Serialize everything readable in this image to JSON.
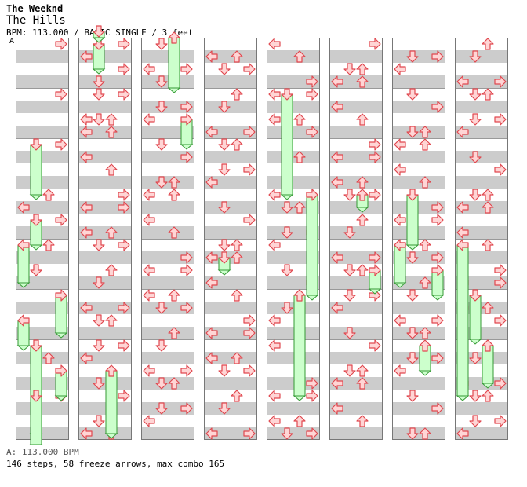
{
  "song": {
    "artist": "The Weeknd",
    "title": "The Hills",
    "info": "BPM: 113.000 / BASIC SINGLE / 3 feet",
    "bpm_marker": "A"
  },
  "footer": {
    "bpm_legend": "A: 113.000 BPM",
    "stats": "146 steps, 58 freeze arrows, max combo 165"
  },
  "colors": {
    "row_dark": "#cccccc",
    "row_light": "#ffffff",
    "arrow_fill": "#ffd5d5",
    "arrow_stroke": "#e0484f",
    "freeze_fill": "#ccffcc",
    "freeze_stroke": "#339933"
  },
  "chart_data": {
    "type": "step-chart",
    "mode": "BASIC SINGLE",
    "difficulty_feet": 3,
    "bpm": 113.0,
    "lanes": [
      "left",
      "down",
      "up",
      "right"
    ],
    "measures_per_column": 8,
    "column_count": 8,
    "notes_unit": "beats from chart start (4 beats per measure)",
    "notes": [
      {
        "beat": 0,
        "lane": "right"
      },
      {
        "beat": 4,
        "lane": "right"
      },
      {
        "beat": 8,
        "lane": "down",
        "freeze": 4
      },
      {
        "beat": 8,
        "lane": "right"
      },
      {
        "beat": 12,
        "lane": "up"
      },
      {
        "beat": 13,
        "lane": "left"
      },
      {
        "beat": 14,
        "lane": "down",
        "freeze": 2
      },
      {
        "beat": 14,
        "lane": "right"
      },
      {
        "beat": 16,
        "lane": "left",
        "freeze": 3
      },
      {
        "beat": 16,
        "lane": "up"
      },
      {
        "beat": 18,
        "lane": "down"
      },
      {
        "beat": 20,
        "lane": "right",
        "freeze": 3
      },
      {
        "beat": 24,
        "lane": "down",
        "freeze": 9
      },
      {
        "beat": 25,
        "lane": "up"
      },
      {
        "beat": 28,
        "lane": "right"
      },
      {
        "beat": 30,
        "lane": "down"
      },
      {
        "beat": 32,
        "lane": "down",
        "freeze": 2
      },
      {
        "beat": 34,
        "lane": "right"
      },
      {
        "beat": 36,
        "lane": "down"
      },
      {
        "beat": 38,
        "lane": "left"
      }
    ],
    "note_rows_y": [
      56,
      72,
      88,
      104,
      120,
      136,
      152,
      168,
      184,
      200,
      216,
      232,
      248,
      264,
      280,
      296,
      312,
      328,
      344,
      360,
      376,
      392,
      408,
      424,
      440,
      456,
      472,
      488,
      504,
      520,
      536,
      552
    ]
  }
}
